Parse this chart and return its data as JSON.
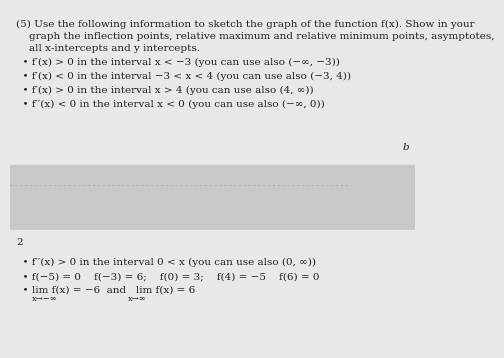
{
  "header_line1": "(5) Use the following information to sketch the graph of the function f(x). Show in your",
  "header_line2": "    graph the inflection points, relative maximum and relative minimum points, asymptotes,",
  "header_line3": "    all x-intercepts and y intercepts.",
  "bullet1": "  • f′(x) > 0 in the interval x < −3 (you can use also (−∞, −3))",
  "bullet2": "  • f′(x) < 0 in the interval −3 < x < 4 (you can use also (−3, 4))",
  "bullet3": "  • f′(x) > 0 in the interval x > 4 (you can use also (4, ∞))",
  "bullet4": "  • f′′(x) < 0 in the interval x < 0 (you can use also (−∞, 0))",
  "bullet5": "  • f′′(x) > 0 in the interval 0 < x (you can use also (0, ∞))",
  "bullet6": "  • f(−5) = 0    f(−3) = 6;    f(0) = 3;    f(4) = −5    f(6) = 0",
  "bullet7_a": "  • lim f(x) = −6  and   lim f(x) = 6",
  "bullet7_sub1": "x→−∞",
  "bullet7_sub2": "x→∞",
  "page_num": "2",
  "bg_light": "#e8e8e8",
  "bg_dark": "#c8c8c8",
  "text_color": "#222222",
  "dot_color": "#aaaaaa",
  "right_mark": "b",
  "fontsize": 7.5,
  "fontsize_small": 6.0
}
